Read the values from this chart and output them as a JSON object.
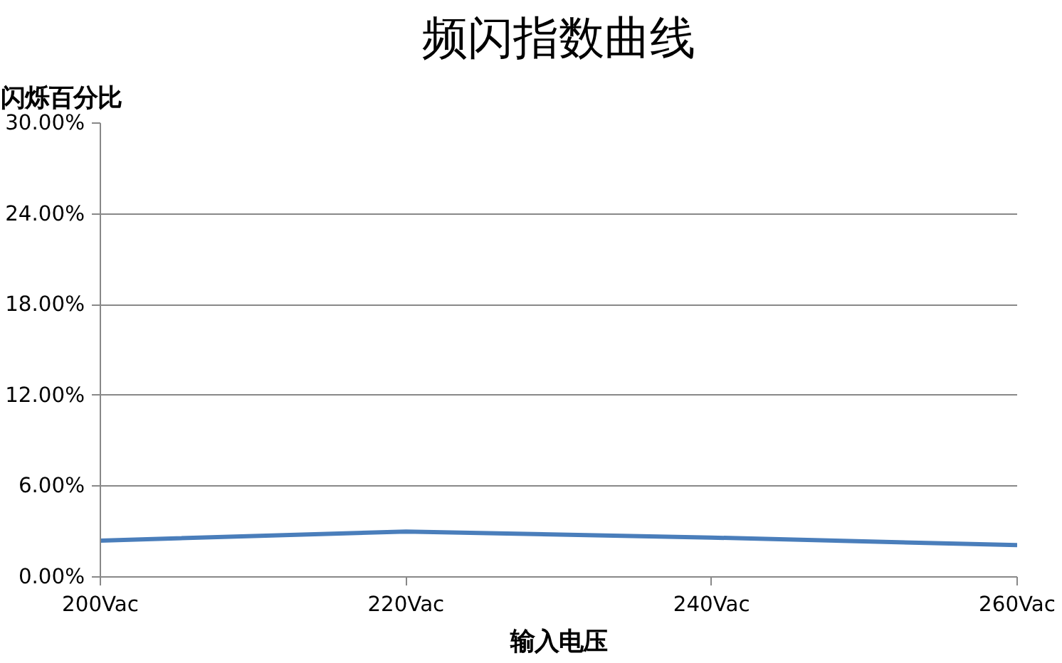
{
  "chart_data": {
    "type": "line",
    "title": "频闪指数曲线",
    "ylabel": "闪烁百分比",
    "xlabel": "输入电压",
    "categories": [
      "200Vac",
      "220Vac",
      "240Vac",
      "260Vac"
    ],
    "series": [
      {
        "color": "#4a7ebb",
        "values": [
          2.4,
          3.0,
          2.6,
          2.1
        ]
      }
    ],
    "ylim": [
      0,
      30
    ],
    "yticks": [
      {
        "value": 0,
        "label": "0.00%"
      },
      {
        "value": 6,
        "label": "6.00%"
      },
      {
        "value": 12,
        "label": "12.00%"
      },
      {
        "value": 18,
        "label": "18.00%"
      },
      {
        "value": 24,
        "label": "24.00%"
      },
      {
        "value": 30,
        "label": "30.00%"
      }
    ],
    "grid": "y",
    "marker": "none",
    "line_style": "solid"
  }
}
